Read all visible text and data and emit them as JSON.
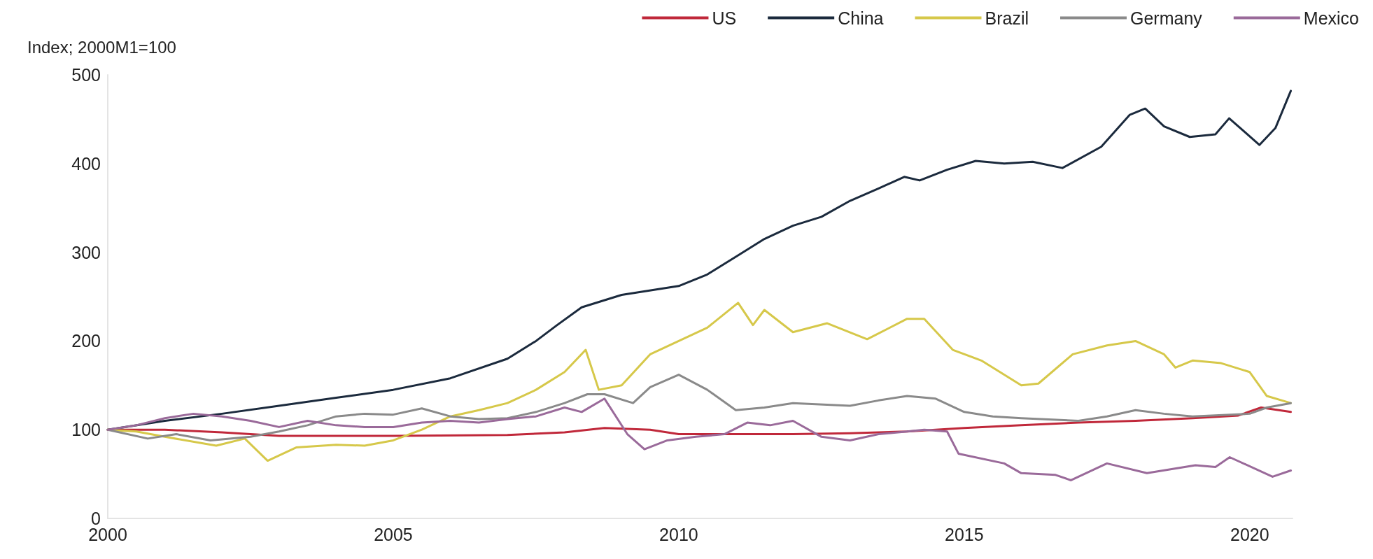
{
  "chart_data": {
    "type": "line",
    "ylabel": "Index; 2000M1=100",
    "xlim": [
      2000,
      2020.75
    ],
    "xticks": [
      2000,
      2005,
      2010,
      2015,
      2020
    ],
    "ylim": [
      0,
      500
    ],
    "yticks": [
      0,
      100,
      200,
      300,
      400,
      500
    ],
    "grid": false,
    "legend": "top right",
    "marker": "none",
    "line_style": "solid",
    "series": [
      {
        "name": "US",
        "color": "#c0283a",
        "x": [
          2000,
          2001,
          2002,
          2003,
          2005,
          2007,
          2008,
          2008.7,
          2009.5,
          2010,
          2011,
          2012,
          2013,
          2014,
          2015,
          2016,
          2017,
          2018,
          2019,
          2019.8,
          2020.2,
          2020.72
        ],
        "values": [
          100,
          100,
          97,
          93,
          93,
          94,
          97,
          102,
          100,
          95,
          95,
          95,
          96,
          98,
          102,
          105,
          108,
          110,
          113,
          116,
          125,
          120
        ]
      },
      {
        "name": "China",
        "color": "#1b2a3d",
        "x": [
          2000,
          2001,
          2002,
          2003,
          2004,
          2005,
          2006,
          2007,
          2007.5,
          2007.87,
          2008.3,
          2009,
          2010,
          2010.5,
          2011,
          2011.5,
          2012,
          2012.5,
          2013,
          2013.5,
          2013.95,
          2014.22,
          2014.7,
          2015.2,
          2015.7,
          2016.2,
          2016.72,
          2017.4,
          2017.9,
          2018.17,
          2018.5,
          2018.95,
          2019.4,
          2019.64,
          2020.17,
          2020.45,
          2020.72
        ],
        "values": [
          100,
          110,
          118,
          127,
          136,
          145,
          158,
          180,
          200,
          218,
          238,
          252,
          262,
          275,
          295,
          315,
          330,
          340,
          358,
          372,
          385,
          381,
          393,
          403,
          400,
          402,
          395,
          419,
          455,
          462,
          442,
          430,
          433,
          451,
          421,
          440,
          482
        ]
      },
      {
        "name": "Brazil",
        "color": "#d6c84a",
        "x": [
          2000,
          2000.5,
          2001,
          2001.9,
          2002.4,
          2002.8,
          2003.3,
          2004,
          2004.5,
          2005,
          2005.5,
          2006,
          2006.5,
          2007,
          2007.5,
          2008,
          2008.37,
          2008.6,
          2009,
          2009.5,
          2010,
          2010.5,
          2011.04,
          2011.3,
          2011.5,
          2012,
          2012.6,
          2013.3,
          2014,
          2014.3,
          2014.8,
          2015.3,
          2016,
          2016.3,
          2016.9,
          2017.5,
          2018,
          2018.5,
          2018.7,
          2019,
          2019.5,
          2020,
          2020.3,
          2020.72
        ],
        "values": [
          100,
          98,
          92,
          82,
          90,
          65,
          80,
          83,
          82,
          88,
          100,
          115,
          122,
          130,
          145,
          165,
          190,
          145,
          150,
          185,
          200,
          215,
          243,
          218,
          235,
          210,
          220,
          202,
          225,
          225,
          190,
          178,
          150,
          152,
          185,
          195,
          200,
          185,
          170,
          178,
          175,
          165,
          138,
          130
        ]
      },
      {
        "name": "Germany",
        "color": "#8a8a8a",
        "x": [
          2000,
          2000.7,
          2001.2,
          2001.8,
          2002.5,
          2003,
          2003.5,
          2004,
          2004.5,
          2005,
          2005.5,
          2006,
          2006.5,
          2007,
          2007.5,
          2008,
          2008.4,
          2008.7,
          2009.2,
          2009.5,
          2010,
          2010.5,
          2011,
          2011.5,
          2012,
          2013,
          2013.5,
          2014,
          2014.5,
          2015,
          2015.5,
          2016,
          2017,
          2017.5,
          2018,
          2018.5,
          2019,
          2020,
          2020.3,
          2020.72
        ],
        "values": [
          100,
          90,
          95,
          88,
          92,
          98,
          105,
          115,
          118,
          117,
          124,
          115,
          112,
          113,
          120,
          130,
          140,
          140,
          130,
          148,
          162,
          145,
          122,
          125,
          130,
          127,
          133,
          138,
          135,
          120,
          115,
          113,
          110,
          115,
          122,
          118,
          115,
          118,
          125,
          130
        ]
      },
      {
        "name": "Mexico",
        "color": "#9a6a9a",
        "x": [
          2000,
          2000.5,
          2001,
          2001.5,
          2002,
          2002.5,
          2003,
          2003.5,
          2004,
          2004.5,
          2005,
          2005.5,
          2006,
          2006.5,
          2007,
          2007.5,
          2008,
          2008.3,
          2008.7,
          2009.1,
          2009.4,
          2009.8,
          2010.3,
          2010.8,
          2011.2,
          2011.6,
          2012,
          2012.5,
          2013,
          2013.5,
          2014,
          2014.3,
          2014.7,
          2014.9,
          2015.7,
          2016,
          2016.6,
          2016.87,
          2017.5,
          2018.2,
          2019.05,
          2019.4,
          2019.65,
          2020.4,
          2020.72
        ],
        "values": [
          100,
          105,
          113,
          118,
          115,
          110,
          103,
          110,
          105,
          103,
          103,
          108,
          110,
          108,
          112,
          115,
          125,
          120,
          135,
          95,
          78,
          88,
          92,
          95,
          108,
          105,
          110,
          92,
          88,
          95,
          98,
          100,
          98,
          73,
          62,
          51,
          49,
          43,
          62,
          51,
          60,
          58,
          69,
          47,
          54
        ]
      }
    ]
  }
}
